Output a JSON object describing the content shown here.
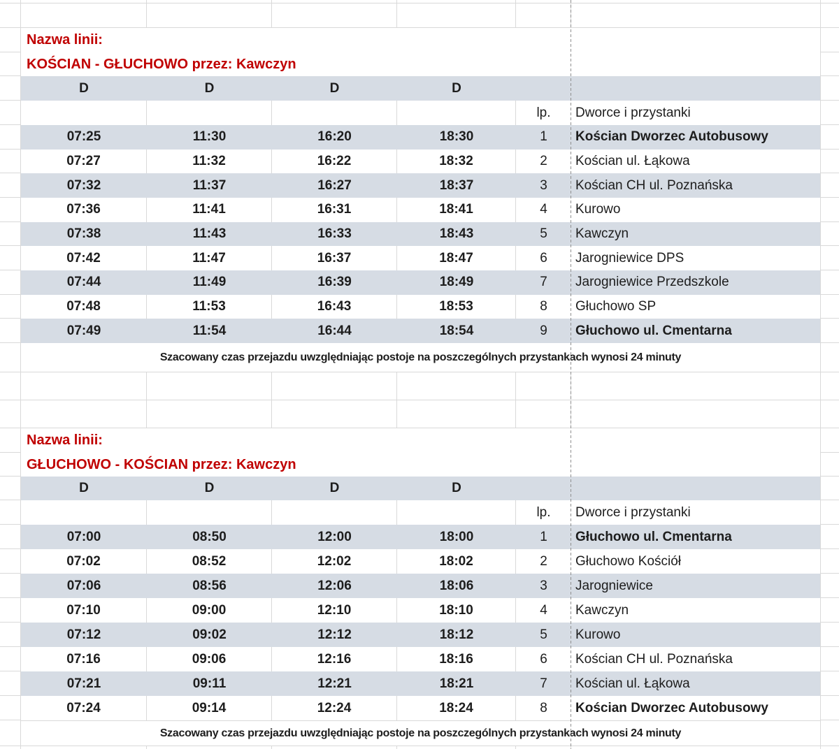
{
  "grid": {
    "band_color": "#d6dce4",
    "gridline_color": "#d9d9d9",
    "title_color": "#c00000",
    "text_color": "#1d1d1d",
    "page_break_color": "#8f8f8f"
  },
  "tables": [
    {
      "name_label": "Nazwa linii:",
      "line_name": "KOŚCIAN - GŁUCHOWO przez: Kawczyn",
      "day_headers": [
        "D",
        "D",
        "D",
        "D"
      ],
      "lp_header": "lp.",
      "stops_header": "Dworce i przystanki",
      "rows": [
        {
          "lp": "1",
          "times": [
            "07:25",
            "11:30",
            "16:20",
            "18:30"
          ],
          "stop": "Kościan Dworzec Autobusowy",
          "terminal": true
        },
        {
          "lp": "2",
          "times": [
            "07:27",
            "11:32",
            "16:22",
            "18:32"
          ],
          "stop": "Kościan ul. Łąkowa",
          "terminal": false
        },
        {
          "lp": "3",
          "times": [
            "07:32",
            "11:37",
            "16:27",
            "18:37"
          ],
          "stop": "Kościan CH ul. Poznańska",
          "terminal": false
        },
        {
          "lp": "4",
          "times": [
            "07:36",
            "11:41",
            "16:31",
            "18:41"
          ],
          "stop": "Kurowo",
          "terminal": false
        },
        {
          "lp": "5",
          "times": [
            "07:38",
            "11:43",
            "16:33",
            "18:43"
          ],
          "stop": "Kawczyn",
          "terminal": false
        },
        {
          "lp": "6",
          "times": [
            "07:42",
            "11:47",
            "16:37",
            "18:47"
          ],
          "stop": "Jarogniewice DPS",
          "terminal": false
        },
        {
          "lp": "7",
          "times": [
            "07:44",
            "11:49",
            "16:39",
            "18:49"
          ],
          "stop": "Jarogniewice Przedszkole",
          "terminal": false
        },
        {
          "lp": "8",
          "times": [
            "07:48",
            "11:53",
            "16:43",
            "18:53"
          ],
          "stop": "Głuchowo SP",
          "terminal": false
        },
        {
          "lp": "9",
          "times": [
            "07:49",
            "11:54",
            "16:44",
            "18:54"
          ],
          "stop": "Głuchowo ul. Cmentarna",
          "terminal": true
        }
      ],
      "note": "Szacowany czas przejazdu uwzględniając postoje na poszczególnych przystankach wynosi 24 minuty"
    },
    {
      "name_label": "Nazwa linii:",
      "line_name": "GŁUCHOWO - KOŚCIAN przez: Kawczyn",
      "day_headers": [
        "D",
        "D",
        "D",
        "D"
      ],
      "lp_header": "lp.",
      "stops_header": "Dworce i przystanki",
      "rows": [
        {
          "lp": "1",
          "times": [
            "07:00",
            "08:50",
            "12:00",
            "18:00"
          ],
          "stop": "Głuchowo ul. Cmentarna",
          "terminal": true
        },
        {
          "lp": "2",
          "times": [
            "07:02",
            "08:52",
            "12:02",
            "18:02"
          ],
          "stop": "Głuchowo Kościół",
          "terminal": false
        },
        {
          "lp": "3",
          "times": [
            "07:06",
            "08:56",
            "12:06",
            "18:06"
          ],
          "stop": "Jarogniewice",
          "terminal": false
        },
        {
          "lp": "4",
          "times": [
            "07:10",
            "09:00",
            "12:10",
            "18:10"
          ],
          "stop": "Kawczyn",
          "terminal": false
        },
        {
          "lp": "5",
          "times": [
            "07:12",
            "09:02",
            "12:12",
            "18:12"
          ],
          "stop": "Kurowo",
          "terminal": false
        },
        {
          "lp": "6",
          "times": [
            "07:16",
            "09:06",
            "12:16",
            "18:16"
          ],
          "stop": "Kościan CH ul. Poznańska",
          "terminal": false
        },
        {
          "lp": "7",
          "times": [
            "07:21",
            "09:11",
            "12:21",
            "18:21"
          ],
          "stop": "Kościan ul. Łąkowa",
          "terminal": false
        },
        {
          "lp": "8",
          "times": [
            "07:24",
            "09:14",
            "12:24",
            "18:24"
          ],
          "stop": "Kościan Dworzec Autobusowy",
          "terminal": true
        }
      ],
      "note": "Szacowany czas przejazdu uwzględniając postoje na poszczególnych przystankach wynosi 24 minuty"
    }
  ]
}
